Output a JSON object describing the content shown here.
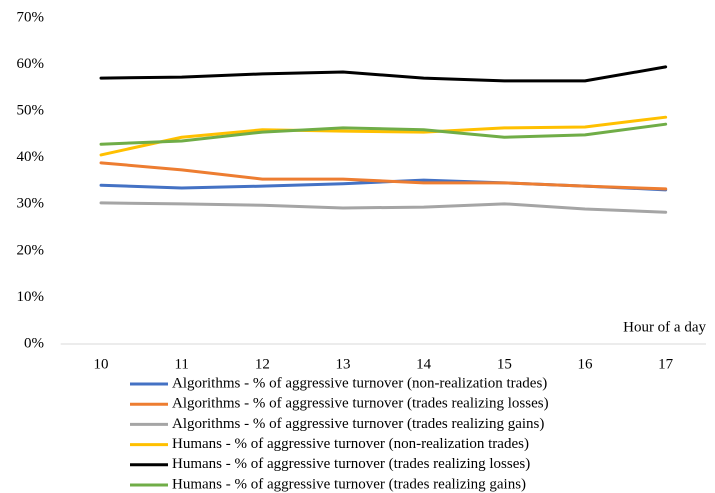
{
  "chart_data": {
    "type": "line",
    "x_label": "Hour of a day",
    "categories": [
      "10",
      "11",
      "12",
      "13",
      "14",
      "15",
      "16",
      "17"
    ],
    "ylim": [
      0,
      70
    ],
    "yticks": [
      {
        "value": 0,
        "label": "0%"
      },
      {
        "value": 10,
        "label": "10%"
      },
      {
        "value": 20,
        "label": "20%"
      },
      {
        "value": 30,
        "label": "30%"
      },
      {
        "value": 40,
        "label": "40%"
      },
      {
        "value": 50,
        "label": "50%"
      },
      {
        "value": 60,
        "label": "60%"
      },
      {
        "value": 70,
        "label": "70%"
      }
    ],
    "grid": false,
    "legend": "bottom",
    "series": [
      {
        "name": "Algorithms - % of aggressive turnover (non-realization trades)",
        "color": "#4472c4",
        "values": [
          34.1,
          33.5,
          33.9,
          34.4,
          35.2,
          34.6,
          33.9,
          33.1
        ]
      },
      {
        "name": "Algorithms - % of aggressive turnover (trades realizing losses)",
        "color": "#ed7d31",
        "values": [
          38.9,
          37.4,
          35.4,
          35.4,
          34.6,
          34.6,
          33.9,
          33.3
        ]
      },
      {
        "name": "Algorithms - % of aggressive turnover (trades realizing gains)",
        "color": "#a5a5a5",
        "values": [
          30.3,
          30.1,
          29.8,
          29.2,
          29.4,
          30.1,
          29.0,
          28.3
        ]
      },
      {
        "name": "Humans - % of aggressive turnover (non-realization trades)",
        "color": "#ffc000",
        "values": [
          40.6,
          44.4,
          46.0,
          45.7,
          45.5,
          46.4,
          46.6,
          48.7
        ]
      },
      {
        "name": "Humans - % of aggressive turnover (trades realizing losses)",
        "color": "#000000",
        "values": [
          57.1,
          57.3,
          58.0,
          58.4,
          57.1,
          56.5,
          56.5,
          59.5
        ]
      },
      {
        "name": "Humans - % of aggressive turnover (trades realizing gains)",
        "color": "#70ad47",
        "values": [
          42.9,
          43.6,
          45.5,
          46.4,
          46.0,
          44.4,
          44.9,
          47.2
        ]
      }
    ]
  }
}
